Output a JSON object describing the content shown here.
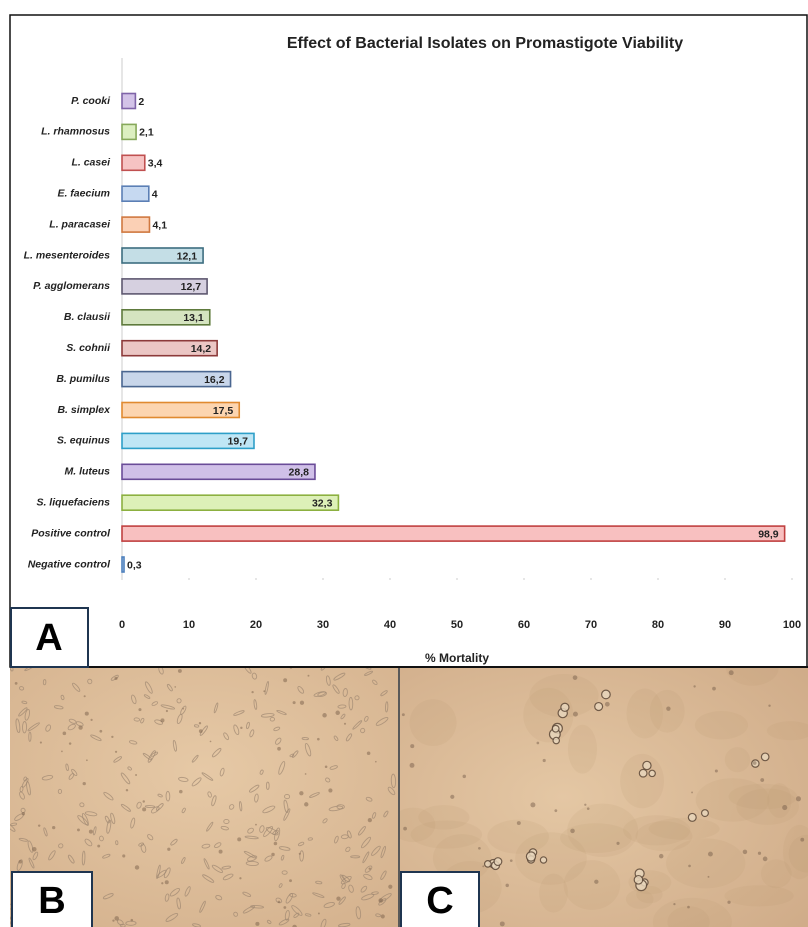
{
  "chart_data": {
    "type": "barh",
    "title": "Effect of Bacterial Isolates on Promastigote Viability",
    "xlabel": "% Mortality",
    "categories": [
      "P. cooki",
      "L. rhamnosus",
      "L. casei",
      "E. faecium",
      "L. paracasei",
      "L. mesenteroides",
      "P. agglomerans",
      "B. clausii",
      "S. cohnii",
      "B. pumilus",
      "B. simplex",
      "S. equinus",
      "M. luteus",
      "S. liquefaciens",
      "Positive control",
      "Negative control"
    ],
    "values": [
      2,
      2.1,
      3.4,
      4,
      4.1,
      12.1,
      12.7,
      13.1,
      14.2,
      16.2,
      17.5,
      19.7,
      28.8,
      32.3,
      98.9,
      0.3
    ],
    "value_labels": [
      "2",
      "2,1",
      "3,4",
      "4",
      "4,1",
      "12,1",
      "12,7",
      "13,1",
      "14,2",
      "16,2",
      "17,5",
      "19,7",
      "28,8",
      "32,3",
      "98,9",
      "0,3"
    ],
    "colors": [
      "#d3c3e8",
      "#dcefc0",
      "#f6c3c3",
      "#c6d9f1",
      "#fbd0b5",
      "#c4dee6",
      "#d6d0e0",
      "#d5e4c0",
      "#ebc6c4",
      "#c8d6ea",
      "#fcd5b0",
      "#bfe6f5",
      "#d0c0e8",
      "#ddf0b8",
      "#f8c0c0",
      "#c6d9f1"
    ],
    "strokes": [
      "#7f64a8",
      "#86a85a",
      "#c05050",
      "#5b7fb5",
      "#d07840",
      "#3d6e80",
      "#5e5870",
      "#5e7a3c",
      "#8c3a3a",
      "#4a6690",
      "#e08a30",
      "#2e9fc8",
      "#6a4c98",
      "#8cb040",
      "#c04040",
      "#4f81bd"
    ],
    "xlim": [
      0,
      100
    ],
    "xticks": [
      0,
      10,
      20,
      30,
      40,
      50,
      60,
      70,
      80,
      90,
      100
    ]
  },
  "panel_labels": [
    "A",
    "B",
    "C"
  ]
}
